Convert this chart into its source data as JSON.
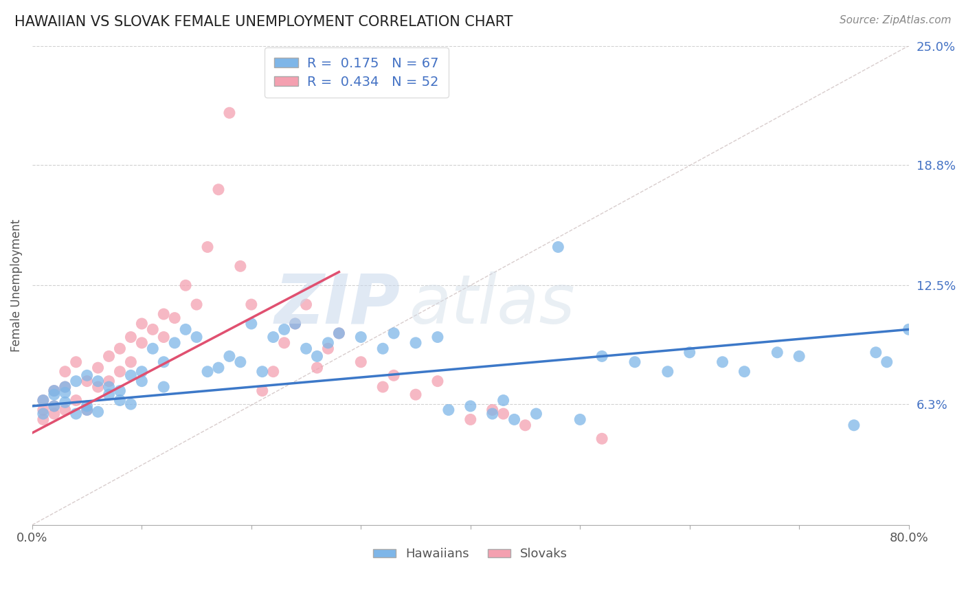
{
  "title": "HAWAIIAN VS SLOVAK FEMALE UNEMPLOYMENT CORRELATION CHART",
  "source_text": "Source: ZipAtlas.com",
  "ylabel": "Female Unemployment",
  "xlim": [
    0.0,
    80.0
  ],
  "ylim": [
    0.0,
    25.0
  ],
  "xtick_vals": [
    0.0,
    10.0,
    20.0,
    30.0,
    40.0,
    50.0,
    60.0,
    70.0,
    80.0
  ],
  "xtick_labels": [
    "0.0%",
    "",
    "",
    "",
    "",
    "",
    "",
    "",
    "80.0%"
  ],
  "ytick_vals": [
    6.3,
    12.5,
    18.8,
    25.0
  ],
  "ytick_labels": [
    "6.3%",
    "12.5%",
    "18.8%",
    "25.0%"
  ],
  "grid_color": "#cccccc",
  "hawaiian_color": "#7EB6E8",
  "slovak_color": "#F4A0B0",
  "hawaiian_line_color": "#3C78C8",
  "slovak_line_color": "#E05070",
  "diag_line_color": "#c8b8b8",
  "hawaiian_R": "0.175",
  "hawaiian_N": "67",
  "slovak_R": "0.434",
  "slovak_N": "52",
  "watermark_zip": "ZIP",
  "watermark_atlas": "atlas",
  "legend_label_1": "Hawaiians",
  "legend_label_2": "Slovaks",
  "tick_color": "#4472C4",
  "label_color": "#555555",
  "hawaiian_scatter_x": [
    1,
    1,
    2,
    2,
    2,
    3,
    3,
    3,
    4,
    4,
    5,
    5,
    5,
    6,
    6,
    7,
    7,
    8,
    8,
    9,
    9,
    10,
    10,
    11,
    12,
    12,
    13,
    14,
    15,
    16,
    17,
    18,
    19,
    20,
    21,
    22,
    23,
    24,
    25,
    26,
    27,
    28,
    30,
    32,
    33,
    35,
    37,
    40,
    42,
    43,
    44,
    46,
    48,
    50,
    52,
    55,
    58,
    60,
    63,
    65,
    68,
    70,
    75,
    77,
    78,
    80,
    38
  ],
  "hawaiian_scatter_y": [
    5.8,
    6.5,
    6.2,
    7.0,
    6.8,
    7.2,
    6.4,
    6.9,
    7.5,
    5.8,
    6.2,
    7.8,
    6.0,
    7.5,
    5.9,
    6.8,
    7.2,
    7.0,
    6.5,
    6.3,
    7.8,
    8.0,
    7.5,
    9.2,
    8.5,
    7.2,
    9.5,
    10.2,
    9.8,
    8.0,
    8.2,
    8.8,
    8.5,
    10.5,
    8.0,
    9.8,
    10.2,
    10.5,
    9.2,
    8.8,
    9.5,
    10.0,
    9.8,
    9.2,
    10.0,
    9.5,
    9.8,
    6.2,
    5.8,
    6.5,
    5.5,
    5.8,
    14.5,
    5.5,
    8.8,
    8.5,
    8.0,
    9.0,
    8.5,
    8.0,
    9.0,
    8.8,
    5.2,
    9.0,
    8.5,
    10.2,
    6.0
  ],
  "slovak_scatter_x": [
    1,
    1,
    1,
    2,
    2,
    2,
    3,
    3,
    3,
    4,
    4,
    5,
    5,
    6,
    6,
    7,
    7,
    8,
    8,
    9,
    9,
    10,
    10,
    11,
    12,
    12,
    13,
    14,
    15,
    16,
    17,
    18,
    19,
    20,
    21,
    22,
    23,
    24,
    25,
    26,
    27,
    28,
    30,
    32,
    33,
    35,
    37,
    40,
    42,
    43,
    45,
    52
  ],
  "slovak_scatter_y": [
    5.5,
    6.0,
    6.5,
    5.8,
    6.2,
    7.0,
    6.0,
    7.2,
    8.0,
    6.5,
    8.5,
    6.0,
    7.5,
    7.2,
    8.2,
    7.5,
    8.8,
    8.0,
    9.2,
    8.5,
    9.8,
    9.5,
    10.5,
    10.2,
    9.8,
    11.0,
    10.8,
    12.5,
    11.5,
    14.5,
    17.5,
    21.5,
    13.5,
    11.5,
    7.0,
    8.0,
    9.5,
    10.5,
    11.5,
    8.2,
    9.2,
    10.0,
    8.5,
    7.2,
    7.8,
    6.8,
    7.5,
    5.5,
    6.0,
    5.8,
    5.2,
    4.5
  ],
  "haw_line_x0": 0.0,
  "haw_line_y0": 6.2,
  "haw_line_x1": 80.0,
  "haw_line_y1": 10.2,
  "slov_line_x0": 0.0,
  "slov_line_y0": 4.8,
  "slov_line_x1": 28.0,
  "slov_line_y1": 13.2
}
